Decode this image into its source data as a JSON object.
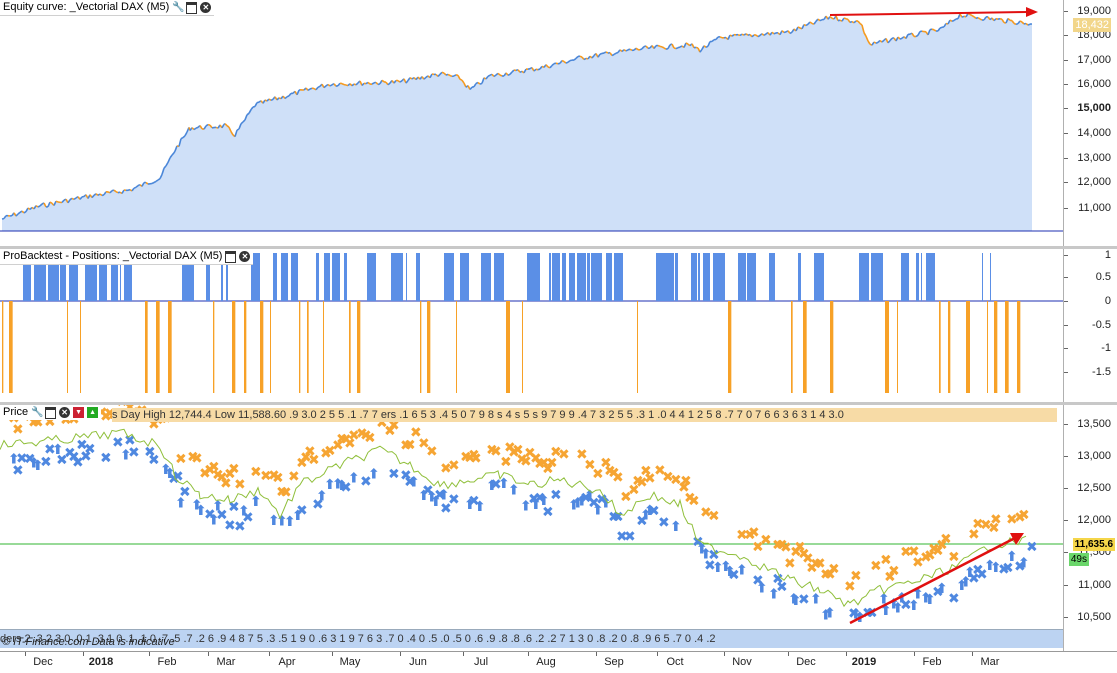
{
  "colors": {
    "equity_fill": "#cfe0f8",
    "equity_line_up": "#4a86d8",
    "equity_line_down": "#f59a1f",
    "long_bars": "#5b8fe6",
    "short_bars": "#f7a127",
    "arrow_red": "#e01010",
    "support_line": "#32b432",
    "price_badge": "#f5d64a",
    "timer_badge": "#6ad66a",
    "marker_orange": "#f6a533",
    "marker_blue": "#4f88e0"
  },
  "equity_panel": {
    "title": "Equity curve: _Vectorial DAX (M5)",
    "icons": [
      "wrench-icon",
      "maximize-icon",
      "close-icon"
    ],
    "y_ticks": [
      "19,000",
      "18,000",
      "17,000",
      "16,000",
      "15,000",
      "14,000",
      "13,000",
      "12,000",
      "11,000"
    ],
    "current_value": "18,432"
  },
  "positions_panel": {
    "title": "ProBacktest - Positions: _Vectorial DAX (M5)",
    "icons": [
      "maximize-icon",
      "close-icon"
    ],
    "y_ticks": [
      "1",
      "0.5",
      "0",
      "-0.5",
      "-1",
      "-1.5"
    ]
  },
  "price_panel": {
    "title": "Price",
    "icons": [
      "wrench-icon",
      "maximize-icon",
      "close-icon",
      "sell-order-icon",
      "buy-order-icon"
    ],
    "info_strip": "s Day High 12,744.4  Low 11,588.60  .9 3.0 2 5 5 .1  .7 7 ers  .1  6 5 3 .4 5 0 7 9 8 s 4  s 5 s 9 7 9 9 .4 7 3 2 5 5  .3 1  .0 4 4 1 2 5  8 .7 7 0  7 6 6 3  6 3 1 4 3.0",
    "bottom_strip": "ders 2 .3 2 3 0 .0 1 .3 1 0 .1  .1 0 .7  .5  .7  .2 6 .9 4 8 7 5 .3 .5 1 9 0 .6 3 1 9 7 6 3 .7 0 .4 0 .5  .0  .5 0 .6  .9 .8  .8  .6 .2 .2 7 1 3 0 .8 .2 0  .8  .9 6 5  .7 0 .4 .2",
    "disclaimer": "© IT-Finance.com  Data is indicative",
    "y_ticks": [
      "13,500",
      "13,000",
      "12,500",
      "12,000",
      "11,500",
      "11,000",
      "10,500"
    ],
    "current_price": "11,635.6",
    "countdown": "49s"
  },
  "date_axis": {
    "labels": [
      "Dec",
      "2018",
      "Feb",
      "Mar",
      "Apr",
      "May",
      "Jun",
      "Jul",
      "Aug",
      "Sep",
      "Oct",
      "Nov",
      "Dec",
      "2019",
      "Feb",
      "Mar"
    ]
  }
}
